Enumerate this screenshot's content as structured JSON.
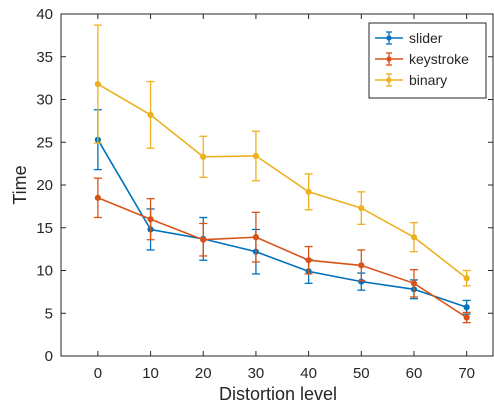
{
  "chart_data": {
    "type": "line",
    "title": "",
    "xlabel": "Distortion level",
    "ylabel": "Time",
    "x": [
      0,
      10,
      20,
      30,
      40,
      50,
      60,
      70
    ],
    "xlim": [
      -7,
      75
    ],
    "ylim": [
      0,
      40
    ],
    "xticks": [
      0,
      10,
      20,
      30,
      40,
      50,
      60,
      70
    ],
    "yticks": [
      0,
      5,
      10,
      15,
      20,
      25,
      30,
      35,
      40
    ],
    "grid": false,
    "legend_position": "top-right",
    "error_bars": true,
    "series": [
      {
        "name": "slider",
        "color": "#0072BD",
        "values": [
          25.3,
          14.8,
          13.7,
          12.2,
          9.9,
          8.7,
          7.8,
          5.7
        ],
        "errors": [
          3.5,
          2.4,
          2.5,
          2.6,
          1.4,
          1.0,
          1.1,
          0.8
        ]
      },
      {
        "name": "keystroke",
        "color": "#D95319",
        "values": [
          18.5,
          16.0,
          13.6,
          13.9,
          11.2,
          10.6,
          8.5,
          4.5
        ],
        "errors": [
          2.3,
          2.4,
          1.9,
          2.9,
          1.6,
          1.8,
          1.6,
          0.6
        ]
      },
      {
        "name": "binary",
        "color": "#EDB120",
        "values": [
          31.8,
          28.2,
          23.3,
          23.4,
          19.2,
          17.3,
          13.9,
          9.1
        ],
        "errors": [
          6.9,
          3.9,
          2.4,
          2.9,
          2.1,
          1.9,
          1.7,
          0.9
        ]
      }
    ]
  }
}
